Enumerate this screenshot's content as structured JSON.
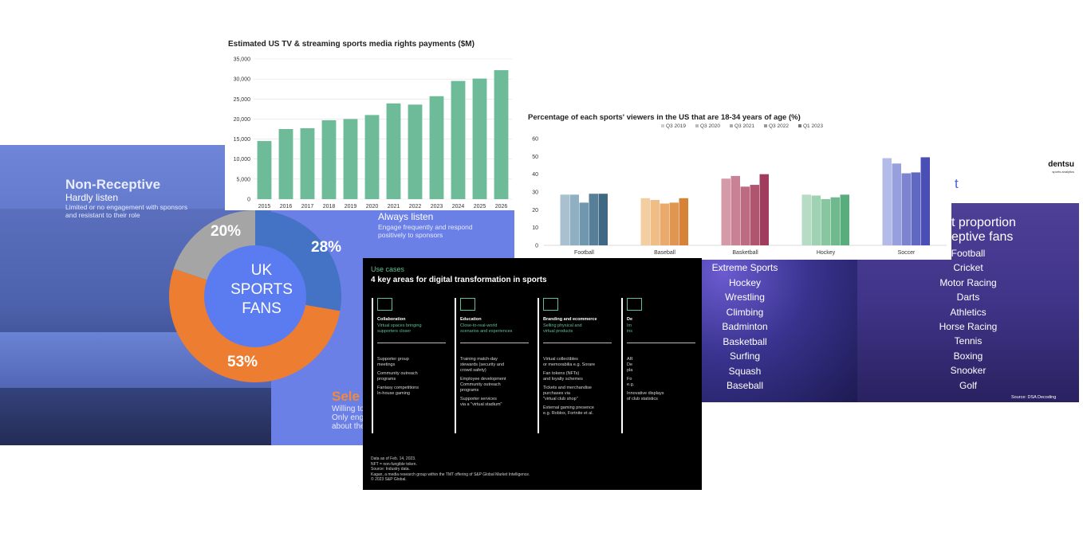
{
  "slide_fans": {
    "non_receptive": {
      "title": "Non-Receptive",
      "subtitle": "Hardly listen",
      "desc1": "Limited or no engagement with sponsors",
      "desc2": "and resistant to their role"
    },
    "always": {
      "subtitle": "Always listen",
      "desc1": "Engage frequently and respond",
      "desc2": "positively to sponsors"
    },
    "selective": {
      "title": "Sele",
      "line1": "Willing to",
      "line2": "Only enga",
      "line3": "about the"
    },
    "center": [
      "UK",
      "SPORTS",
      "FANS"
    ],
    "segments": [
      {
        "label": "20%",
        "value": 20,
        "color": "#a5a5a5"
      },
      {
        "label": "28%",
        "value": 28,
        "color": "#4472c4"
      },
      {
        "label": "53%",
        "value": 53,
        "color": "#ed7d31"
      }
    ],
    "center_color": "#5b7cf0"
  },
  "slide_usecases": {
    "eyebrow": "Use cases",
    "title": "4 key areas for digital transformation in sports",
    "columns": [
      {
        "head": "Collaboration",
        "sub1": "Virtual spaces bringing",
        "sub2": "supporters closer",
        "items": [
          "Supporter group",
          "meetings",
          "Community outreach",
          "programs",
          "Fantasy competitions",
          "In-house gaming"
        ]
      },
      {
        "head": "Education",
        "sub1": "Close-to-real-world",
        "sub2": "scenarios and experiences",
        "items": [
          "Training match-day",
          "stewards (security and",
          "crowd safety)",
          "Employee development",
          "Community outreach",
          "programs",
          "Supporter services",
          "via a \"virtual stadium\""
        ]
      },
      {
        "head": "Branding and ecommerce",
        "sub1": "Selling physical and",
        "sub2": "virtual products",
        "items": [
          "Virtual collectibles",
          "or memorabilia e.g. Sorare",
          "Fan tokens (NFTs)",
          "and loyalty schemes",
          "Tickets and merchandise",
          "purchases via",
          "\"virtual club shop\"",
          "External gaming presence",
          "e.g. Roblox, Fortnite et al."
        ]
      },
      {
        "head": "De",
        "sub1": "Im",
        "sub2": "ins",
        "items": [
          "AR",
          "De",
          "pla",
          "Fo",
          "e.g.",
          "Innovative displays",
          "of club statistics"
        ]
      }
    ],
    "footnotes": [
      "Data as of Feb. 14, 2023.",
      "NFT = non-fungible token.",
      "Source: Industry data.",
      "Kagan, a media research group within the TMT offering of S&P Global Market Intelligence.",
      "© 2023 S&P Global."
    ]
  },
  "slide_dentsu": {
    "logo": "dentsu",
    "logo_sub": "sports analytics",
    "partial_heading": "t",
    "right_title1": "st proportion",
    "right_title2": "ceptive fans",
    "left_sports": [
      "Extreme Sports",
      "Hockey",
      "Wrestling",
      "Climbing",
      "Badminton",
      "Basketball",
      "Surfing",
      "Squash",
      "Baseball"
    ],
    "right_sports": [
      "Football",
      "Cricket",
      "Motor Racing",
      "Darts",
      "Athletics",
      "Horse Racing",
      "Tennis",
      "Boxing",
      "Snooker",
      "Golf"
    ],
    "source": "Source: DSA Decoding"
  },
  "chart_data": [
    {
      "type": "bar",
      "title": "Estimated US TV & streaming sports media rights payments ($M)",
      "categories": [
        "2015",
        "2016",
        "2017",
        "2018",
        "2019",
        "2020",
        "2021",
        "2022",
        "2023",
        "2024",
        "2025",
        "2026"
      ],
      "values": [
        14500,
        17500,
        17700,
        19700,
        20000,
        21000,
        23900,
        23600,
        25700,
        29500,
        30100,
        32200
      ],
      "ylim": [
        0,
        35000
      ],
      "yticks": [
        "0",
        "5,000",
        "10,000",
        "15,000",
        "20,000",
        "25,000",
        "30,000",
        "35,000"
      ],
      "color": "#6dbb98",
      "grid": true
    },
    {
      "type": "bar",
      "title": "Percentage of each sports' viewers in the US that are 18-34 years of age (%)",
      "categories": [
        "Football",
        "Baseball",
        "Basketball",
        "Hockey",
        "Soccer"
      ],
      "series": [
        {
          "name": "Q3 2019",
          "values": [
            28.5,
            26.5,
            37.5,
            28.5,
            49
          ]
        },
        {
          "name": "Q3 2020",
          "values": [
            28.5,
            25.5,
            39,
            28,
            46
          ]
        },
        {
          "name": "Q3 2021",
          "values": [
            24,
            23.5,
            33,
            26,
            40.5
          ]
        },
        {
          "name": "Q3 2022",
          "values": [
            29,
            24,
            34,
            27,
            41
          ]
        },
        {
          "name": "Q1 2023",
          "values": [
            29,
            26.5,
            40,
            28.5,
            49.5
          ]
        }
      ],
      "palettes": [
        [
          "#a8c0cf",
          "#8fb0c2",
          "#6f97ae",
          "#577f98",
          "#3f6882"
        ],
        [
          "#f3ceA1",
          "#efbd86",
          "#e9aa6b",
          "#e09650",
          "#d68338"
        ],
        [
          "#d49aa8",
          "#c98295",
          "#bd6b82",
          "#b0556f",
          "#a03d5c"
        ],
        [
          "#b6dcc5",
          "#9fd1b3",
          "#88c5a1",
          "#70b98e",
          "#58ad7c"
        ],
        [
          "#b3bbe8",
          "#979fdc",
          "#7c84cf",
          "#6168c2",
          "#4a4fb5"
        ]
      ],
      "legend_colors": [
        "#cccccc",
        "#bbbbbb",
        "#aaaaaa",
        "#999999",
        "#777777"
      ],
      "ylim": [
        0,
        60
      ],
      "yticks": [
        "0",
        "10",
        "20",
        "30",
        "40",
        "50",
        "60"
      ],
      "legend_position": "top"
    }
  ]
}
